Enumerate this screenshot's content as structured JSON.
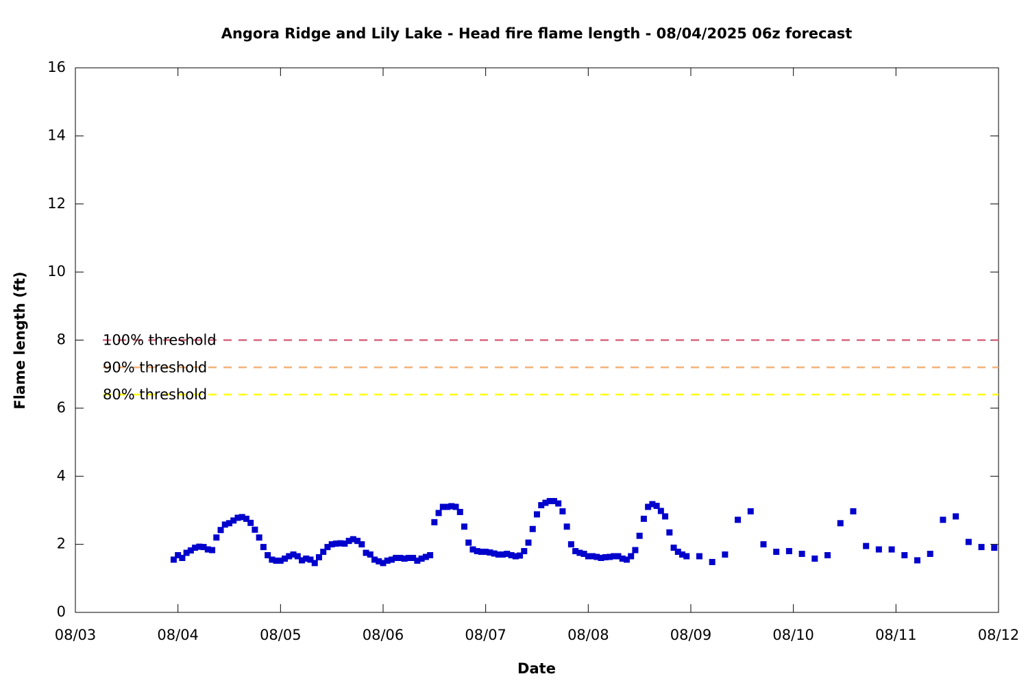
{
  "chart_data": {
    "type": "scatter",
    "title": "Angora Ridge and Lily Lake - Head fire flame length - 08/04/2025 06z forecast",
    "x_label": "Date",
    "y_label": "Flame length (ft)",
    "xlim": [
      0,
      216
    ],
    "xticks": [
      {
        "value": 0,
        "label": "08/03"
      },
      {
        "value": 24,
        "label": "08/04"
      },
      {
        "value": 48,
        "label": "08/05"
      },
      {
        "value": 72,
        "label": "08/06"
      },
      {
        "value": 96,
        "label": "08/07"
      },
      {
        "value": 120,
        "label": "08/08"
      },
      {
        "value": 144,
        "label": "08/09"
      },
      {
        "value": 168,
        "label": "08/10"
      },
      {
        "value": 192,
        "label": "08/11"
      },
      {
        "value": 216,
        "label": "08/12"
      }
    ],
    "ylim": [
      0,
      16
    ],
    "yticks": [
      0,
      2,
      4,
      6,
      8,
      10,
      12,
      14,
      16
    ],
    "thresholds": [
      {
        "name": "100% threshold",
        "value": 8,
        "color": "#d9657f"
      },
      {
        "name": "90% threshold",
        "value": 7.2,
        "color": "#f2b27a"
      },
      {
        "name": "80% threshold",
        "value": 6.4,
        "color": "#ffff00"
      }
    ],
    "series": [
      {
        "color": "#0000cc",
        "x": [
          23,
          24,
          25,
          26,
          27,
          28,
          29,
          30,
          31,
          32,
          33,
          34,
          35,
          36,
          37,
          38,
          39,
          40,
          41,
          42,
          43,
          44,
          45,
          46,
          47,
          48,
          49,
          50,
          51,
          52,
          53,
          54,
          55,
          56,
          57,
          58,
          59,
          60,
          61,
          62,
          63,
          64,
          65,
          66,
          67,
          68,
          69,
          70,
          71,
          72,
          73,
          74,
          75,
          76,
          77,
          78,
          79,
          80,
          81,
          82,
          83,
          84,
          85,
          86,
          87,
          88,
          89,
          90,
          91,
          92,
          93,
          94,
          95,
          96,
          97,
          98,
          99,
          100,
          101,
          102,
          103,
          104,
          105,
          106,
          107,
          108,
          109,
          110,
          111,
          112,
          113,
          114,
          115,
          116,
          117,
          118,
          119,
          120,
          121,
          122,
          123,
          124,
          125,
          126,
          127,
          128,
          129,
          130,
          131,
          132,
          133,
          134,
          135,
          136,
          137,
          138,
          139,
          140,
          141,
          142,
          143,
          146,
          149,
          152,
          155,
          158,
          161,
          164,
          167,
          170,
          173,
          176,
          179,
          182,
          185,
          188,
          191,
          194,
          197,
          200,
          203,
          206,
          209,
          212,
          215
        ],
        "values": [
          1.55,
          1.68,
          1.6,
          1.75,
          1.82,
          1.9,
          1.93,
          1.92,
          1.85,
          1.83,
          2.2,
          2.42,
          2.58,
          2.62,
          2.7,
          2.78,
          2.8,
          2.75,
          2.63,
          2.43,
          2.2,
          1.92,
          1.68,
          1.55,
          1.52,
          1.52,
          1.58,
          1.65,
          1.7,
          1.65,
          1.53,
          1.58,
          1.55,
          1.45,
          1.62,
          1.78,
          1.92,
          2.0,
          2.02,
          2.03,
          2.02,
          2.1,
          2.15,
          2.1,
          2.0,
          1.75,
          1.7,
          1.55,
          1.5,
          1.45,
          1.52,
          1.55,
          1.6,
          1.6,
          1.58,
          1.6,
          1.6,
          1.52,
          1.58,
          1.63,
          1.68,
          2.65,
          2.92,
          3.1,
          3.1,
          3.12,
          3.1,
          2.95,
          2.52,
          2.05,
          1.85,
          1.8,
          1.78,
          1.78,
          1.76,
          1.73,
          1.7,
          1.7,
          1.72,
          1.68,
          1.65,
          1.67,
          1.8,
          2.05,
          2.45,
          2.88,
          3.15,
          3.22,
          3.27,
          3.27,
          3.2,
          2.97,
          2.52,
          2.0,
          1.8,
          1.75,
          1.72,
          1.65,
          1.65,
          1.63,
          1.6,
          1.62,
          1.63,
          1.65,
          1.65,
          1.58,
          1.55,
          1.65,
          1.83,
          2.25,
          2.75,
          3.1,
          3.18,
          3.13,
          2.98,
          2.82,
          2.35,
          1.9,
          1.78,
          1.7,
          1.65,
          1.65,
          1.48,
          1.7,
          2.72,
          2.97,
          2.0,
          1.78,
          1.8,
          1.72,
          1.58,
          1.68,
          2.62,
          2.97,
          1.95,
          1.85,
          1.85,
          1.68,
          1.53,
          1.72,
          2.72,
          2.82,
          2.07,
          1.92,
          1.9
        ]
      }
    ]
  }
}
